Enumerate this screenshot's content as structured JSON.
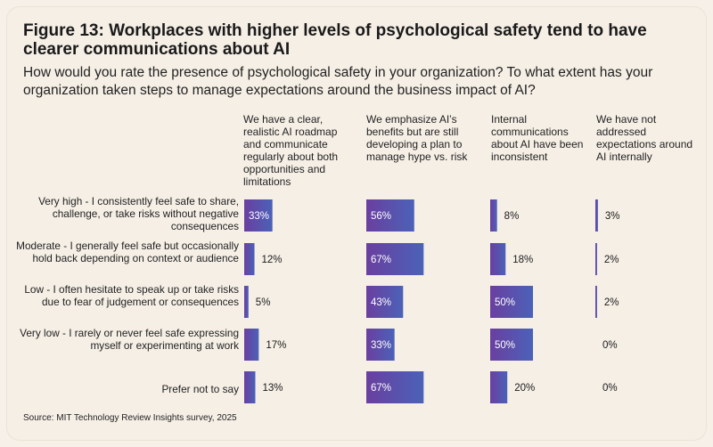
{
  "title": "Figure 13: Workplaces with higher levels of psychological safety tend to have clearer communications about AI",
  "subtitle": "How would you rate the presence of psychological safety in your organization? To what extent has your organization taken steps to manage expectations around the business impact of AI?",
  "source": "Source: MIT Technology Review Insights survey, 2025",
  "colors": {
    "bar_start": "#6a3fa0",
    "bar_end": "#4b62b8",
    "label_inside": "#ffffff",
    "label_outside": "#1a1a1a"
  },
  "chart_data": {
    "type": "bar",
    "orientation": "horizontal-grouped-panels",
    "unit": "%",
    "categories": [
      "Very high - I consistently feel safe to share, challenge, or take risks without negative consequences",
      "Moderate - I generally feel safe but occasionally hold back depending on context or audience",
      "Low - I often hesitate to speak up or take risks due to fear of judgement or consequences",
      "Very low - I rarely or never feel safe expressing myself or experimenting at work",
      "Prefer not to say"
    ],
    "series": [
      {
        "name": "We have a clear, realistic AI roadmap and communicate regularly about both opportunities and limitations",
        "values": [
          33,
          12,
          5,
          17,
          13
        ]
      },
      {
        "name": "We emphasize AI’s benefits but are still developing a plan to manage hype vs. risk",
        "values": [
          56,
          67,
          43,
          33,
          67
        ]
      },
      {
        "name": "Internal communications about AI have been inconsistent",
        "values": [
          8,
          18,
          50,
          50,
          20
        ]
      },
      {
        "name": "We have not addressed expectations around AI internally",
        "values": [
          3,
          2,
          2,
          0,
          0
        ]
      }
    ],
    "xlim": [
      0,
      100
    ]
  }
}
